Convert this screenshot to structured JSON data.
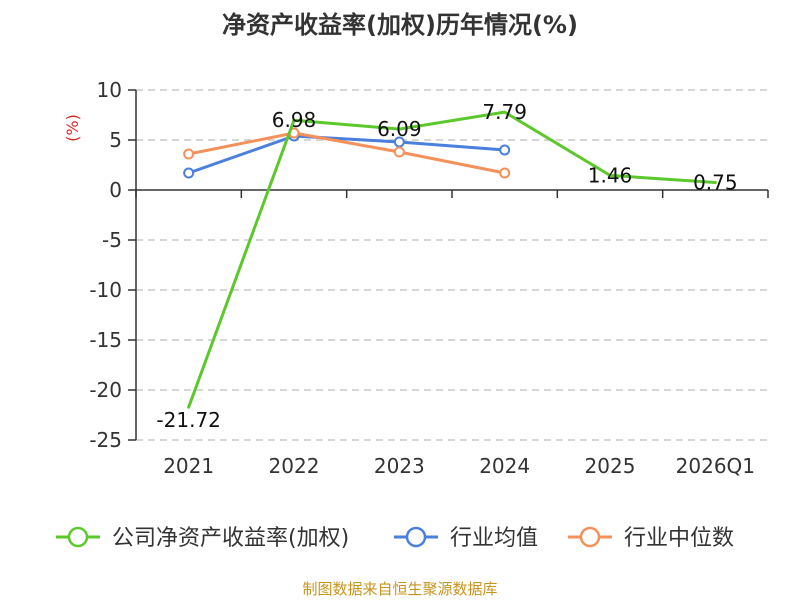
{
  "chart_data": {
    "type": "line",
    "title": "净资产收益率(加权)历年情况(%)",
    "ylabel": "(%)",
    "categories": [
      "2021",
      "2022",
      "2023",
      "2024",
      "2025",
      "2026Q1"
    ],
    "ylim": [
      -25,
      10
    ],
    "yticks": [
      10,
      5,
      0,
      -5,
      -10,
      -15,
      -20,
      -25
    ],
    "ytick_labels": [
      "10",
      "5",
      "0",
      "-5",
      "-10",
      "-15",
      "-20",
      "-25"
    ],
    "grid": true,
    "legend_position": "bottom",
    "series": [
      {
        "name": "公司净资产收益率(加权)",
        "color": "#5cc82b",
        "values": [
          -21.72,
          6.98,
          6.09,
          7.79,
          1.46,
          0.75
        ],
        "labels": [
          "-21.72",
          "6.98",
          "6.09",
          "7.79",
          "1.46",
          "0.75"
        ]
      },
      {
        "name": "行业均值",
        "color": "#4a7fdd",
        "values": [
          1.7,
          5.4,
          4.8,
          4.0,
          null,
          null
        ]
      },
      {
        "name": "行业中位数",
        "color": "#f5905b",
        "values": [
          3.6,
          5.7,
          3.8,
          1.7,
          null,
          null
        ]
      }
    ]
  },
  "source": "制图数据来自恒生聚源数据库",
  "colors": {
    "ylabel": "#d9262a",
    "source": "#c8941e",
    "grid": "#c8c8c8",
    "axis": "#333333"
  }
}
